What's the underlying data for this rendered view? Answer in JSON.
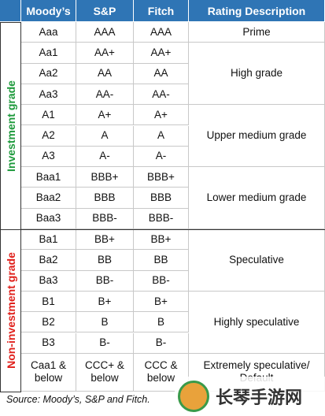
{
  "header": {
    "columns": [
      "Moody’s",
      "S&P",
      "Fitch",
      "Rating Description"
    ]
  },
  "sections": [
    {
      "label": "Investment grade",
      "color": "#1e9a3c",
      "tiers": [
        {
          "description": "Prime",
          "rows": [
            [
              "Aaa",
              "AAA",
              "AAA"
            ]
          ]
        },
        {
          "description": "High grade",
          "rows": [
            [
              "Aa1",
              "AA+",
              "AA+"
            ],
            [
              "Aa2",
              "AA",
              "AA"
            ],
            [
              "Aa3",
              "AA-",
              "AA-"
            ]
          ]
        },
        {
          "description": "Upper medium grade",
          "rows": [
            [
              "A1",
              "A+",
              "A+"
            ],
            [
              "A2",
              "A",
              "A"
            ],
            [
              "A3",
              "A-",
              "A-"
            ]
          ]
        },
        {
          "description": "Lower medium grade",
          "rows": [
            [
              "Baa1",
              "BBB+",
              "BBB+"
            ],
            [
              "Baa2",
              "BBB",
              "BBB"
            ],
            [
              "Baa3",
              "BBB-",
              "BBB-"
            ]
          ]
        }
      ]
    },
    {
      "label": "Non-investment grade",
      "color": "#e0201b",
      "tiers": [
        {
          "description": "Speculative",
          "rows": [
            [
              "Ba1",
              "BB+",
              "BB+"
            ],
            [
              "Ba2",
              "BB",
              "BB"
            ],
            [
              "Ba3",
              "BB-",
              "BB-"
            ]
          ]
        },
        {
          "description": "Highly speculative",
          "rows": [
            [
              "B1",
              "B+",
              "B+"
            ],
            [
              "B2",
              "B",
              "B"
            ],
            [
              "B3",
              "B-",
              "B-"
            ]
          ]
        },
        {
          "description": "Extremely speculative/ Default",
          "rows": [
            [
              "Caa1 & below",
              "CCC+ & below",
              "CCC & below"
            ]
          ]
        }
      ]
    }
  ],
  "source": "Source: Moody’s, S&P and Fitch.",
  "watermark": "长琴手游网"
}
